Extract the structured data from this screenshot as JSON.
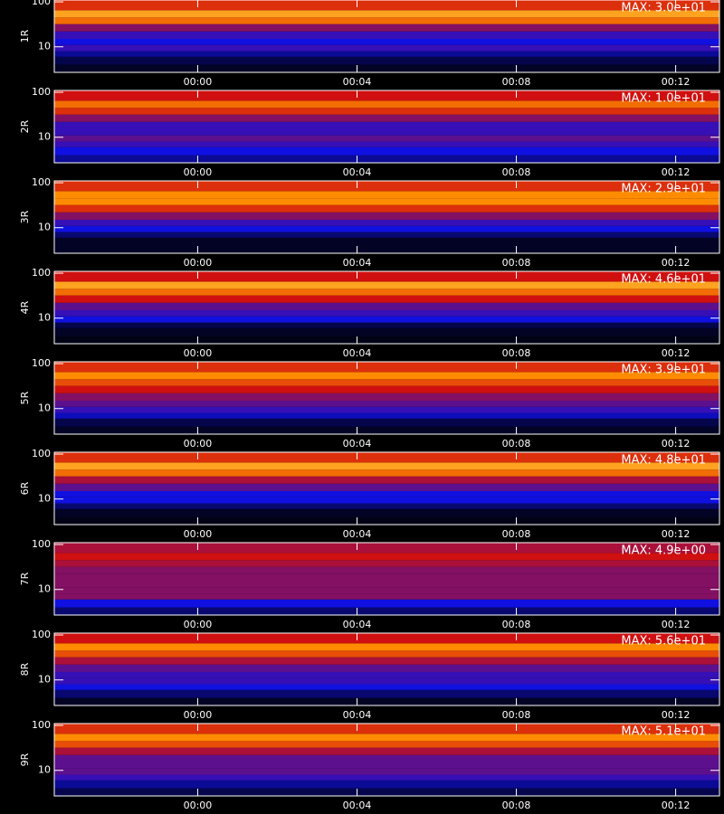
{
  "chart_data": [
    {
      "type": "heatmap",
      "ylabel": "1R",
      "annotation": "MAX: 3.0e+01",
      "log_y": true,
      "ylim": [
        2.7,
        110
      ],
      "yticks": [
        10,
        100
      ],
      "xlim": [
        -3.6,
        13.1
      ],
      "xticks": [
        {
          "value": 0,
          "label": "00:00"
        },
        {
          "value": 4,
          "label": "00:04"
        },
        {
          "value": 8,
          "label": "00:08"
        },
        {
          "value": 12,
          "label": "00:12"
        }
      ],
      "y_bins": [
        2.7,
        4,
        6,
        8,
        11,
        15,
        22,
        32,
        45,
        65,
        110
      ],
      "intensity": [
        0.05,
        0.1,
        0.2,
        0.35,
        0.3,
        0.35,
        0.45,
        0.7,
        0.8,
        0.6
      ],
      "colors": [
        "#000000",
        "#1010e0",
        "#d01010",
        "#ff8c00",
        "#ffffa0"
      ],
      "color_stops": [
        0,
        0.3,
        0.55,
        0.75,
        1
      ]
    },
    {
      "type": "heatmap",
      "ylabel": "2R",
      "annotation": "MAX: 1.0e+01",
      "log_y": true,
      "ylim": [
        2.7,
        110
      ],
      "yticks": [
        10,
        100
      ],
      "xlim": [
        -3.6,
        13.1
      ],
      "xticks": [
        {
          "value": 0,
          "label": "00:00"
        },
        {
          "value": 4,
          "label": "00:04"
        },
        {
          "value": 8,
          "label": "00:08"
        },
        {
          "value": 12,
          "label": "00:12"
        }
      ],
      "y_bins": [
        2.7,
        4,
        6,
        8,
        11,
        15,
        22,
        32,
        45,
        65,
        110
      ],
      "intensity": [
        0.2,
        0.3,
        0.35,
        0.4,
        0.35,
        0.35,
        0.45,
        0.6,
        0.7,
        0.55
      ],
      "colors": [
        "#000000",
        "#1010e0",
        "#d01010",
        "#ff8c00",
        "#ffffa0"
      ],
      "color_stops": [
        0,
        0.3,
        0.55,
        0.75,
        1
      ]
    },
    {
      "type": "heatmap",
      "ylabel": "3R",
      "annotation": "MAX: 2.9e+01",
      "log_y": true,
      "ylim": [
        2.7,
        110
      ],
      "yticks": [
        10,
        100
      ],
      "xlim": [
        -3.6,
        13.1
      ],
      "xticks": [
        {
          "value": 0,
          "label": "00:00"
        },
        {
          "value": 4,
          "label": "00:04"
        },
        {
          "value": 8,
          "label": "00:08"
        },
        {
          "value": 12,
          "label": "00:12"
        }
      ],
      "y_bins": [
        2.7,
        4,
        6,
        8,
        11,
        15,
        22,
        32,
        45,
        65,
        110
      ],
      "intensity": [
        0.05,
        0.05,
        0.15,
        0.3,
        0.35,
        0.45,
        0.6,
        0.75,
        0.75,
        0.6
      ],
      "colors": [
        "#000000",
        "#1010e0",
        "#d01010",
        "#ff8c00",
        "#ffffa0"
      ],
      "color_stops": [
        0,
        0.3,
        0.55,
        0.75,
        1
      ]
    },
    {
      "type": "heatmap",
      "ylabel": "4R",
      "annotation": "MAX: 4.6e+01",
      "log_y": true,
      "ylim": [
        2.7,
        110
      ],
      "yticks": [
        10,
        100
      ],
      "xlim": [
        -3.6,
        13.1
      ],
      "xticks": [
        {
          "value": 0,
          "label": "00:00"
        },
        {
          "value": 4,
          "label": "00:04"
        },
        {
          "value": 8,
          "label": "00:08"
        },
        {
          "value": 12,
          "label": "00:12"
        }
      ],
      "y_bins": [
        2.7,
        4,
        6,
        8,
        11,
        15,
        22,
        32,
        45,
        65,
        110
      ],
      "intensity": [
        0.03,
        0.05,
        0.1,
        0.3,
        0.35,
        0.4,
        0.55,
        0.7,
        0.8,
        0.55
      ],
      "colors": [
        "#000000",
        "#1010e0",
        "#d01010",
        "#ff8c00",
        "#ffffa0"
      ],
      "color_stops": [
        0,
        0.3,
        0.55,
        0.75,
        1
      ]
    },
    {
      "type": "heatmap",
      "ylabel": "5R",
      "annotation": "MAX: 3.9e+01",
      "log_y": true,
      "ylim": [
        2.7,
        110
      ],
      "yticks": [
        10,
        100
      ],
      "xlim": [
        -3.6,
        13.1
      ],
      "xticks": [
        {
          "value": 0,
          "label": "00:00"
        },
        {
          "value": 4,
          "label": "00:04"
        },
        {
          "value": 8,
          "label": "00:08"
        },
        {
          "value": 12,
          "label": "00:12"
        }
      ],
      "y_bins": [
        2.7,
        4,
        6,
        8,
        11,
        15,
        22,
        32,
        45,
        65,
        110
      ],
      "intensity": [
        0.05,
        0.1,
        0.25,
        0.35,
        0.4,
        0.45,
        0.55,
        0.65,
        0.75,
        0.6
      ],
      "colors": [
        "#000000",
        "#1010e0",
        "#d01010",
        "#ff8c00",
        "#ffffa0"
      ],
      "color_stops": [
        0,
        0.3,
        0.55,
        0.75,
        1
      ]
    },
    {
      "type": "heatmap",
      "ylabel": "6R",
      "annotation": "MAX: 4.8e+01",
      "log_y": true,
      "ylim": [
        2.7,
        110
      ],
      "yticks": [
        10,
        100
      ],
      "xlim": [
        -3.6,
        13.1
      ],
      "xticks": [
        {
          "value": 0,
          "label": "00:00"
        },
        {
          "value": 4,
          "label": "00:04"
        },
        {
          "value": 8,
          "label": "00:08"
        },
        {
          "value": 12,
          "label": "00:12"
        }
      ],
      "y_bins": [
        2.7,
        4,
        6,
        8,
        11,
        15,
        22,
        32,
        45,
        65,
        110
      ],
      "intensity": [
        0.03,
        0.05,
        0.15,
        0.3,
        0.3,
        0.4,
        0.5,
        0.7,
        0.8,
        0.6
      ],
      "colors": [
        "#000000",
        "#1010e0",
        "#d01010",
        "#ff8c00",
        "#ffffa0"
      ],
      "color_stops": [
        0,
        0.3,
        0.55,
        0.75,
        1
      ]
    },
    {
      "type": "heatmap",
      "ylabel": "7R",
      "annotation": "MAX: 4.9e+00",
      "log_y": true,
      "ylim": [
        2.7,
        110
      ],
      "yticks": [
        10,
        100
      ],
      "xlim": [
        -3.6,
        13.1
      ],
      "xticks": [
        {
          "value": 0,
          "label": "00:00"
        },
        {
          "value": 4,
          "label": "00:04"
        },
        {
          "value": 8,
          "label": "00:08"
        },
        {
          "value": 12,
          "label": "00:12"
        }
      ],
      "y_bins": [
        2.7,
        4,
        6,
        8,
        11,
        15,
        22,
        32,
        45,
        65,
        110
      ],
      "intensity": [
        0.15,
        0.3,
        0.45,
        0.45,
        0.45,
        0.45,
        0.45,
        0.5,
        0.55,
        0.5
      ],
      "colors": [
        "#000000",
        "#1010e0",
        "#d01010",
        "#ff8c00",
        "#ffffa0"
      ],
      "color_stops": [
        0,
        0.3,
        0.55,
        0.75,
        1
      ]
    },
    {
      "type": "heatmap",
      "ylabel": "8R",
      "annotation": "MAX: 5.6e+01",
      "log_y": true,
      "ylim": [
        2.7,
        110
      ],
      "yticks": [
        10,
        100
      ],
      "xlim": [
        -3.6,
        13.1
      ],
      "xticks": [
        {
          "value": 0,
          "label": "00:00"
        },
        {
          "value": 4,
          "label": "00:04"
        },
        {
          "value": 8,
          "label": "00:08"
        },
        {
          "value": 12,
          "label": "00:12"
        }
      ],
      "y_bins": [
        2.7,
        4,
        6,
        8,
        11,
        15,
        22,
        32,
        45,
        65,
        110
      ],
      "intensity": [
        0.05,
        0.15,
        0.3,
        0.35,
        0.35,
        0.4,
        0.5,
        0.65,
        0.75,
        0.55
      ],
      "colors": [
        "#000000",
        "#1010e0",
        "#d01010",
        "#ff8c00",
        "#ffffa0"
      ],
      "color_stops": [
        0,
        0.3,
        0.55,
        0.75,
        1
      ]
    },
    {
      "type": "heatmap",
      "ylabel": "9R",
      "annotation": "MAX: 5.1e+01",
      "log_y": true,
      "ylim": [
        2.7,
        110
      ],
      "yticks": [
        10,
        100
      ],
      "xlim": [
        -3.6,
        13.1
      ],
      "xticks": [
        {
          "value": 0,
          "label": "00:00"
        },
        {
          "value": 4,
          "label": "00:04"
        },
        {
          "value": 8,
          "label": "00:08"
        },
        {
          "value": 12,
          "label": "00:12"
        }
      ],
      "y_bins": [
        2.7,
        4,
        6,
        8,
        11,
        15,
        22,
        32,
        45,
        65,
        110
      ],
      "intensity": [
        0.1,
        0.2,
        0.35,
        0.4,
        0.4,
        0.4,
        0.5,
        0.65,
        0.75,
        0.6
      ],
      "colors": [
        "#000000",
        "#1010e0",
        "#d01010",
        "#ff8c00",
        "#ffffa0"
      ],
      "color_stops": [
        0,
        0.3,
        0.55,
        0.75,
        1
      ]
    }
  ]
}
